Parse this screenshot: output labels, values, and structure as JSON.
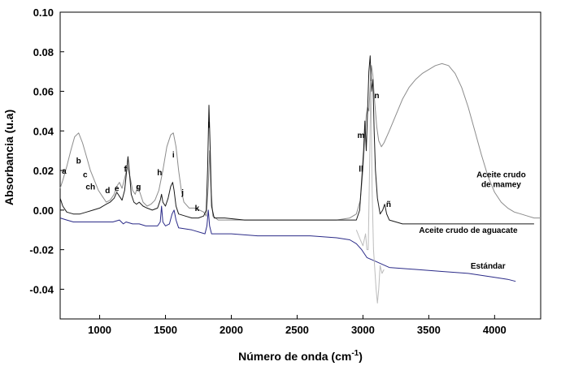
{
  "chart_data": {
    "type": "line",
    "xlabel": "Número de onda (cm",
    "xlabel_sup": "-1",
    "xlabel_end": ")",
    "ylabel": "Absorbancia  (u.a)",
    "xlim": [
      700,
      4350
    ],
    "ylim": [
      -0.055,
      0.1
    ],
    "x_ticks": [
      1000,
      1500,
      2000,
      2500,
      3000,
      3500,
      4000
    ],
    "y_ticks": [
      -0.04,
      -0.02,
      0.0,
      0.02,
      0.04,
      0.06,
      0.08,
      0.1
    ],
    "y_tick_labels": [
      "-0.04",
      "-0.02",
      "0.00",
      "0.02",
      "0.04",
      "0.06",
      "0.08",
      "0.10"
    ],
    "grid": false,
    "legend": "inline labels at right",
    "series": [
      {
        "name": "Aceite crudo de mamey",
        "color": "#8c8c8c",
        "points": [
          [
            700,
            0.011
          ],
          [
            720,
            0.015
          ],
          [
            750,
            0.022
          ],
          [
            780,
            0.03
          ],
          [
            810,
            0.037
          ],
          [
            840,
            0.039
          ],
          [
            870,
            0.034
          ],
          [
            900,
            0.027
          ],
          [
            930,
            0.02
          ],
          [
            960,
            0.015
          ],
          [
            990,
            0.01
          ],
          [
            1020,
            0.007
          ],
          [
            1050,
            0.004
          ],
          [
            1080,
            0.005
          ],
          [
            1110,
            0.008
          ],
          [
            1130,
            0.012
          ],
          [
            1150,
            0.014
          ],
          [
            1170,
            0.011
          ],
          [
            1190,
            0.016
          ],
          [
            1210,
            0.022
          ],
          [
            1230,
            0.017
          ],
          [
            1250,
            0.01
          ],
          [
            1270,
            0.008
          ],
          [
            1290,
            0.012
          ],
          [
            1310,
            0.008
          ],
          [
            1330,
            0.004
          ],
          [
            1360,
            0.002
          ],
          [
            1390,
            0.003
          ],
          [
            1420,
            0.005
          ],
          [
            1450,
            0.01
          ],
          [
            1480,
            0.02
          ],
          [
            1510,
            0.032
          ],
          [
            1540,
            0.038
          ],
          [
            1560,
            0.039
          ],
          [
            1580,
            0.032
          ],
          [
            1600,
            0.02
          ],
          [
            1620,
            0.01
          ],
          [
            1640,
            0.004
          ],
          [
            1680,
            0.001
          ],
          [
            1720,
            0.001
          ],
          [
            1760,
            0.0
          ],
          [
            1790,
            -0.001
          ],
          [
            1810,
            -0.003
          ],
          [
            1825,
            0.012
          ],
          [
            1835,
            0.03
          ],
          [
            1845,
            0.012
          ],
          [
            1860,
            -0.003
          ],
          [
            1900,
            -0.005
          ],
          [
            2000,
            -0.005
          ],
          [
            2200,
            -0.005
          ],
          [
            2400,
            -0.005
          ],
          [
            2600,
            -0.005
          ],
          [
            2800,
            -0.005
          ],
          [
            2900,
            -0.004
          ],
          [
            2950,
            -0.002
          ],
          [
            2980,
            0.005
          ],
          [
            3000,
            0.02
          ],
          [
            3015,
            0.038
          ],
          [
            3025,
            0.048
          ],
          [
            3035,
            0.052
          ],
          [
            3045,
            0.05
          ],
          [
            3055,
            0.062
          ],
          [
            3065,
            0.073
          ],
          [
            3075,
            0.068
          ],
          [
            3085,
            0.058
          ],
          [
            3095,
            0.05
          ],
          [
            3105,
            0.042
          ],
          [
            3120,
            0.035
          ],
          [
            3140,
            0.032
          ],
          [
            3160,
            0.034
          ],
          [
            3200,
            0.04
          ],
          [
            3250,
            0.048
          ],
          [
            3300,
            0.056
          ],
          [
            3350,
            0.062
          ],
          [
            3400,
            0.066
          ],
          [
            3450,
            0.069
          ],
          [
            3500,
            0.071
          ],
          [
            3550,
            0.073
          ],
          [
            3600,
            0.074
          ],
          [
            3650,
            0.073
          ],
          [
            3700,
            0.069
          ],
          [
            3750,
            0.062
          ],
          [
            3800,
            0.052
          ],
          [
            3850,
            0.04
          ],
          [
            3900,
            0.028
          ],
          [
            3950,
            0.017
          ],
          [
            4000,
            0.009
          ],
          [
            4050,
            0.004
          ],
          [
            4100,
            0.001
          ],
          [
            4150,
            -0.001
          ],
          [
            4200,
            -0.002
          ],
          [
            4250,
            -0.003
          ],
          [
            4300,
            -0.004
          ],
          [
            4350,
            -0.004
          ]
        ]
      },
      {
        "name": "Aceite crudo de aguacate",
        "color": "#1a1a1a",
        "points": [
          [
            700,
            0.006
          ],
          [
            720,
            0.002
          ],
          [
            750,
            -0.001
          ],
          [
            800,
            -0.002
          ],
          [
            850,
            -0.002
          ],
          [
            900,
            -0.001
          ],
          [
            950,
            0.0
          ],
          [
            1000,
            0.001
          ],
          [
            1050,
            0.003
          ],
          [
            1080,
            0.004
          ],
          [
            1110,
            0.006
          ],
          [
            1130,
            0.009
          ],
          [
            1150,
            0.007
          ],
          [
            1170,
            0.005
          ],
          [
            1190,
            0.01
          ],
          [
            1205,
            0.02
          ],
          [
            1215,
            0.027
          ],
          [
            1225,
            0.02
          ],
          [
            1240,
            0.008
          ],
          [
            1260,
            0.004
          ],
          [
            1280,
            0.003
          ],
          [
            1300,
            0.004
          ],
          [
            1330,
            0.002
          ],
          [
            1360,
            0.001
          ],
          [
            1400,
            0.0
          ],
          [
            1440,
            0.001
          ],
          [
            1460,
            0.005
          ],
          [
            1470,
            0.008
          ],
          [
            1480,
            0.004
          ],
          [
            1500,
            0.002
          ],
          [
            1520,
            0.006
          ],
          [
            1540,
            0.012
          ],
          [
            1555,
            0.014
          ],
          [
            1565,
            0.01
          ],
          [
            1580,
            0.002
          ],
          [
            1600,
            -0.002
          ],
          [
            1650,
            -0.003
          ],
          [
            1700,
            -0.004
          ],
          [
            1750,
            -0.004
          ],
          [
            1790,
            -0.003
          ],
          [
            1810,
            0.0
          ],
          [
            1820,
            0.02
          ],
          [
            1830,
            0.053
          ],
          [
            1840,
            0.03
          ],
          [
            1850,
            0.002
          ],
          [
            1870,
            -0.004
          ],
          [
            1950,
            -0.004
          ],
          [
            2100,
            -0.005
          ],
          [
            2300,
            -0.005
          ],
          [
            2500,
            -0.005
          ],
          [
            2700,
            -0.005
          ],
          [
            2900,
            -0.005
          ],
          [
            2950,
            -0.005
          ],
          [
            2975,
            0.0
          ],
          [
            2990,
            0.015
          ],
          [
            3005,
            0.03
          ],
          [
            3015,
            0.045
          ],
          [
            3025,
            0.03
          ],
          [
            3035,
            0.05
          ],
          [
            3045,
            0.07
          ],
          [
            3055,
            0.078
          ],
          [
            3065,
            0.06
          ],
          [
            3075,
            0.066
          ],
          [
            3085,
            0.04
          ],
          [
            3095,
            0.02
          ],
          [
            3110,
            0.006
          ],
          [
            3130,
            -0.002
          ],
          [
            3150,
            0.0
          ],
          [
            3165,
            0.003
          ],
          [
            3180,
            -0.002
          ],
          [
            3200,
            -0.005
          ],
          [
            3300,
            -0.007
          ],
          [
            3500,
            -0.007
          ],
          [
            3700,
            -0.007
          ],
          [
            3900,
            -0.007
          ],
          [
            4100,
            -0.007
          ],
          [
            4300,
            -0.007
          ]
        ]
      },
      {
        "name": "Estándar",
        "color": "#2b2b88",
        "points": [
          [
            700,
            -0.004
          ],
          [
            750,
            -0.005
          ],
          [
            800,
            -0.006
          ],
          [
            900,
            -0.006
          ],
          [
            1000,
            -0.006
          ],
          [
            1050,
            -0.006
          ],
          [
            1100,
            -0.006
          ],
          [
            1150,
            -0.005
          ],
          [
            1180,
            -0.007
          ],
          [
            1200,
            -0.006
          ],
          [
            1250,
            -0.007
          ],
          [
            1300,
            -0.007
          ],
          [
            1350,
            -0.008
          ],
          [
            1400,
            -0.008
          ],
          [
            1440,
            -0.008
          ],
          [
            1460,
            -0.006
          ],
          [
            1470,
            0.002
          ],
          [
            1480,
            -0.006
          ],
          [
            1500,
            -0.008
          ],
          [
            1530,
            -0.007
          ],
          [
            1550,
            -0.002
          ],
          [
            1565,
            0.0
          ],
          [
            1580,
            -0.005
          ],
          [
            1600,
            -0.009
          ],
          [
            1700,
            -0.01
          ],
          [
            1800,
            -0.012
          ],
          [
            1815,
            -0.008
          ],
          [
            1825,
            0.0
          ],
          [
            1835,
            -0.008
          ],
          [
            1850,
            -0.012
          ],
          [
            1900,
            -0.012
          ],
          [
            2000,
            -0.012
          ],
          [
            2200,
            -0.013
          ],
          [
            2400,
            -0.013
          ],
          [
            2600,
            -0.013
          ],
          [
            2800,
            -0.014
          ],
          [
            2900,
            -0.015
          ],
          [
            2950,
            -0.017
          ],
          [
            2990,
            -0.02
          ],
          [
            3030,
            -0.024
          ],
          [
            3100,
            -0.026
          ],
          [
            3200,
            -0.029
          ],
          [
            3400,
            -0.03
          ],
          [
            3600,
            -0.031
          ],
          [
            3800,
            -0.032
          ],
          [
            4000,
            -0.034
          ],
          [
            4100,
            -0.035
          ],
          [
            4160,
            -0.036
          ]
        ]
      },
      {
        "name": "",
        "color": "#bcbcbc",
        "points": [
          [
            2950,
            -0.01
          ],
          [
            2980,
            -0.015
          ],
          [
            3000,
            -0.018
          ],
          [
            3020,
            -0.012
          ],
          [
            3030,
            -0.02
          ],
          [
            3040,
            -0.02
          ],
          [
            3050,
            0.02
          ],
          [
            3060,
            0.065
          ],
          [
            3070,
            0.01
          ],
          [
            3080,
            -0.02
          ],
          [
            3090,
            -0.03
          ],
          [
            3100,
            -0.04
          ],
          [
            3110,
            -0.047
          ],
          [
            3120,
            -0.04
          ],
          [
            3130,
            -0.028
          ],
          [
            3145,
            -0.032
          ],
          [
            3160,
            -0.03
          ]
        ]
      }
    ],
    "peak_labels": [
      {
        "text": "a",
        "x": 730,
        "y": 0.0185
      },
      {
        "text": "b",
        "x": 840,
        "y": 0.0235
      },
      {
        "text": "c",
        "x": 890,
        "y": 0.0165
      },
      {
        "text": "ch",
        "x": 930,
        "y": 0.0105
      },
      {
        "text": "d",
        "x": 1060,
        "y": 0.0085
      },
      {
        "text": "e",
        "x": 1130,
        "y": 0.0095
      },
      {
        "text": "f",
        "x": 1195,
        "y": 0.0195
      },
      {
        "text": "g",
        "x": 1295,
        "y": 0.0105
      },
      {
        "text": "h",
        "x": 1455,
        "y": 0.0175
      },
      {
        "text": "i",
        "x": 1560,
        "y": 0.0265
      },
      {
        "text": "j",
        "x": 1630,
        "y": 0.0075
      },
      {
        "text": "k",
        "x": 1740,
        "y": -0.0005
      },
      {
        "text": "l",
        "x": 1830,
        "y": 0.0415
      },
      {
        "text": "m",
        "x": 2985,
        "y": 0.0365
      },
      {
        "text": "ll",
        "x": 2985,
        "y": 0.0195
      },
      {
        "text": "n",
        "x": 3105,
        "y": 0.0565
      },
      {
        "text": "ñ",
        "x": 3195,
        "y": 0.0015
      }
    ],
    "series_labels": [
      {
        "lines": [
          "Aceite crudo",
          "de mamey"
        ],
        "x": 4050,
        "y": 0.0165
      },
      {
        "lines": [
          "Aceite crudo de aguacate"
        ],
        "x": 3800,
        "y": -0.0115
      },
      {
        "lines": [
          "Estándar"
        ],
        "x": 3950,
        "y": -0.0295
      }
    ]
  }
}
